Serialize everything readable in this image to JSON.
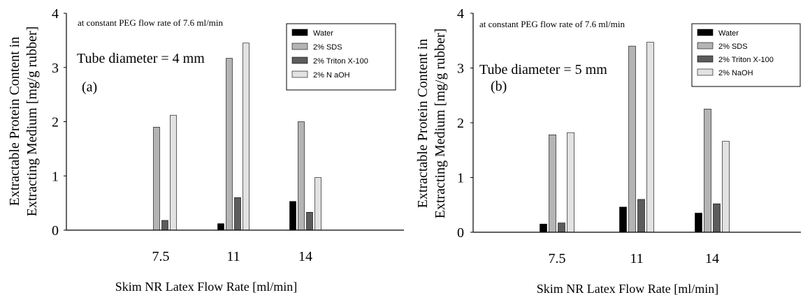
{
  "figure": {
    "panels": [
      {
        "panel_label": "(a)",
        "condition_note": "at constant PEG flow rate of 7.6 ml/min",
        "tube_label": "Tube diameter = 4 mm"
      },
      {
        "panel_label": "(b)",
        "condition_note": "at constant PEG flow rate of 7.6 ml/min",
        "tube_label": "Tube diameter = 5 mm"
      }
    ]
  },
  "chart_data": [
    {
      "type": "bar",
      "title": "",
      "xlabel": "Skim NR Latex Flow Rate [ml/min]",
      "ylabel_line1": "Extractable Protein Content in",
      "ylabel_line2": "Extracting Medium [mg/g rubber]",
      "categories": [
        "7.5",
        "11",
        "14"
      ],
      "ylim": [
        0,
        4
      ],
      "yticks": [
        "0",
        "1",
        "2",
        "3",
        "4"
      ],
      "legend_position": "top-right",
      "series": [
        {
          "name": "Water",
          "color": "#000000",
          "values": [
            0.0,
            0.12,
            0.53
          ]
        },
        {
          "name": "2% SDS",
          "color": "#b4b4b4",
          "values": [
            1.9,
            3.17,
            2.0
          ]
        },
        {
          "name": "2% Triton X-100",
          "color": "#5c5c5c",
          "values": [
            0.18,
            0.6,
            0.33
          ]
        },
        {
          "name": "2% N aOH",
          "color": "#e2e2e2",
          "values": [
            2.12,
            3.45,
            0.97
          ]
        }
      ]
    },
    {
      "type": "bar",
      "title": "",
      "xlabel": "Skim NR Latex Flow Rate [ml/min]",
      "ylabel_line1": "Extractable Protein Content in",
      "ylabel_line2": "Extracting Medium [mg/g rubber]",
      "categories": [
        "7.5",
        "11",
        "14"
      ],
      "ylim": [
        0,
        4
      ],
      "yticks": [
        "0",
        "1",
        "2",
        "3",
        "4"
      ],
      "legend_position": "top-right",
      "series": [
        {
          "name": "Water",
          "color": "#000000",
          "values": [
            0.15,
            0.46,
            0.35
          ]
        },
        {
          "name": "2% SDS",
          "color": "#b4b4b4",
          "values": [
            1.78,
            3.4,
            2.25
          ]
        },
        {
          "name": "2% Triton X-100",
          "color": "#5c5c5c",
          "values": [
            0.17,
            0.6,
            0.52
          ]
        },
        {
          "name": "2% NaOH",
          "color": "#e2e2e2",
          "values": [
            1.82,
            3.47,
            1.66
          ]
        }
      ]
    }
  ]
}
